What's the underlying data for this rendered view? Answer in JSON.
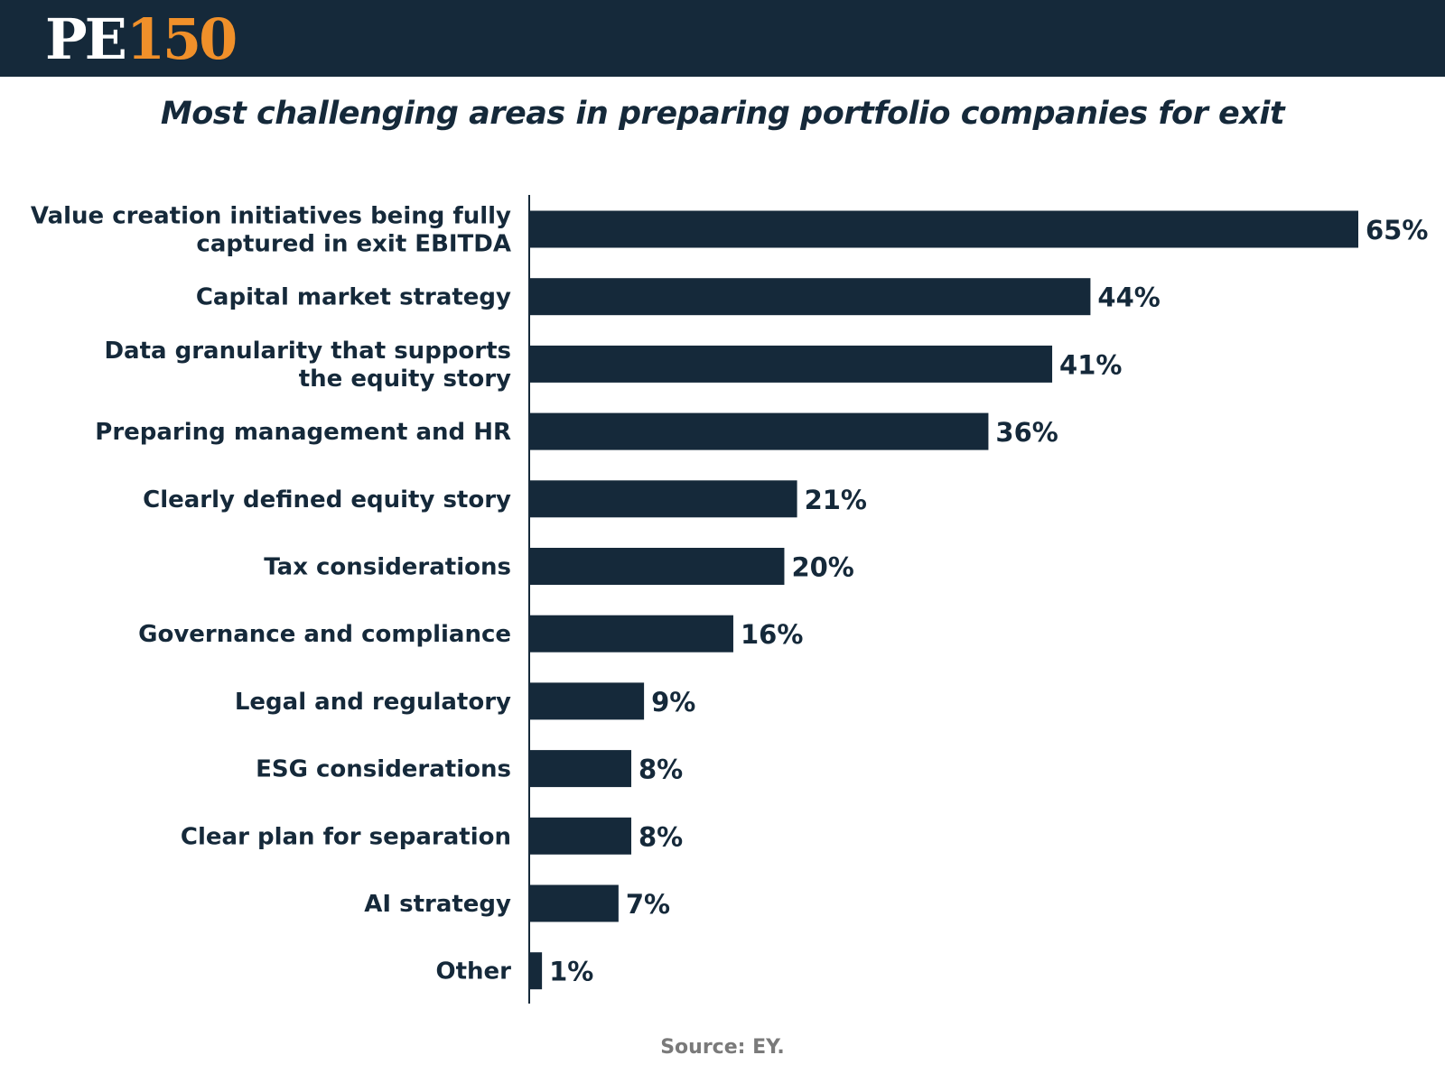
{
  "header": {
    "logo_pe": "PE",
    "logo_num": "150"
  },
  "colors": {
    "header_bg": "#15293a",
    "logo_accent": "#f0902a",
    "bar": "#15293a",
    "source_text": "#7a7a7a"
  },
  "chart_data": {
    "type": "bar",
    "orientation": "horizontal",
    "title": "Most challenging areas in preparing portfolio companies for exit",
    "categories": [
      [
        "Value creation initiatives being fully",
        "captured in exit EBITDA"
      ],
      [
        "Capital market strategy"
      ],
      [
        "Data granularity that supports",
        "the equity story"
      ],
      [
        "Preparing management and HR"
      ],
      [
        "Clearly defined equity story"
      ],
      [
        "Tax considerations"
      ],
      [
        "Governance and compliance"
      ],
      [
        "Legal and regulatory"
      ],
      [
        "ESG considerations"
      ],
      [
        "Clear plan for separation"
      ],
      [
        "AI strategy"
      ],
      [
        "Other"
      ]
    ],
    "values": [
      65,
      44,
      41,
      36,
      21,
      20,
      16,
      9,
      8,
      8,
      7,
      1
    ],
    "value_labels": [
      "65%",
      "44%",
      "41%",
      "36%",
      "21%",
      "20%",
      "16%",
      "9%",
      "8%",
      "8%",
      "7%",
      "1%"
    ],
    "unit": "%",
    "xlim": [
      0,
      65
    ],
    "grid": false,
    "legend": "none"
  },
  "source": "Source: EY."
}
